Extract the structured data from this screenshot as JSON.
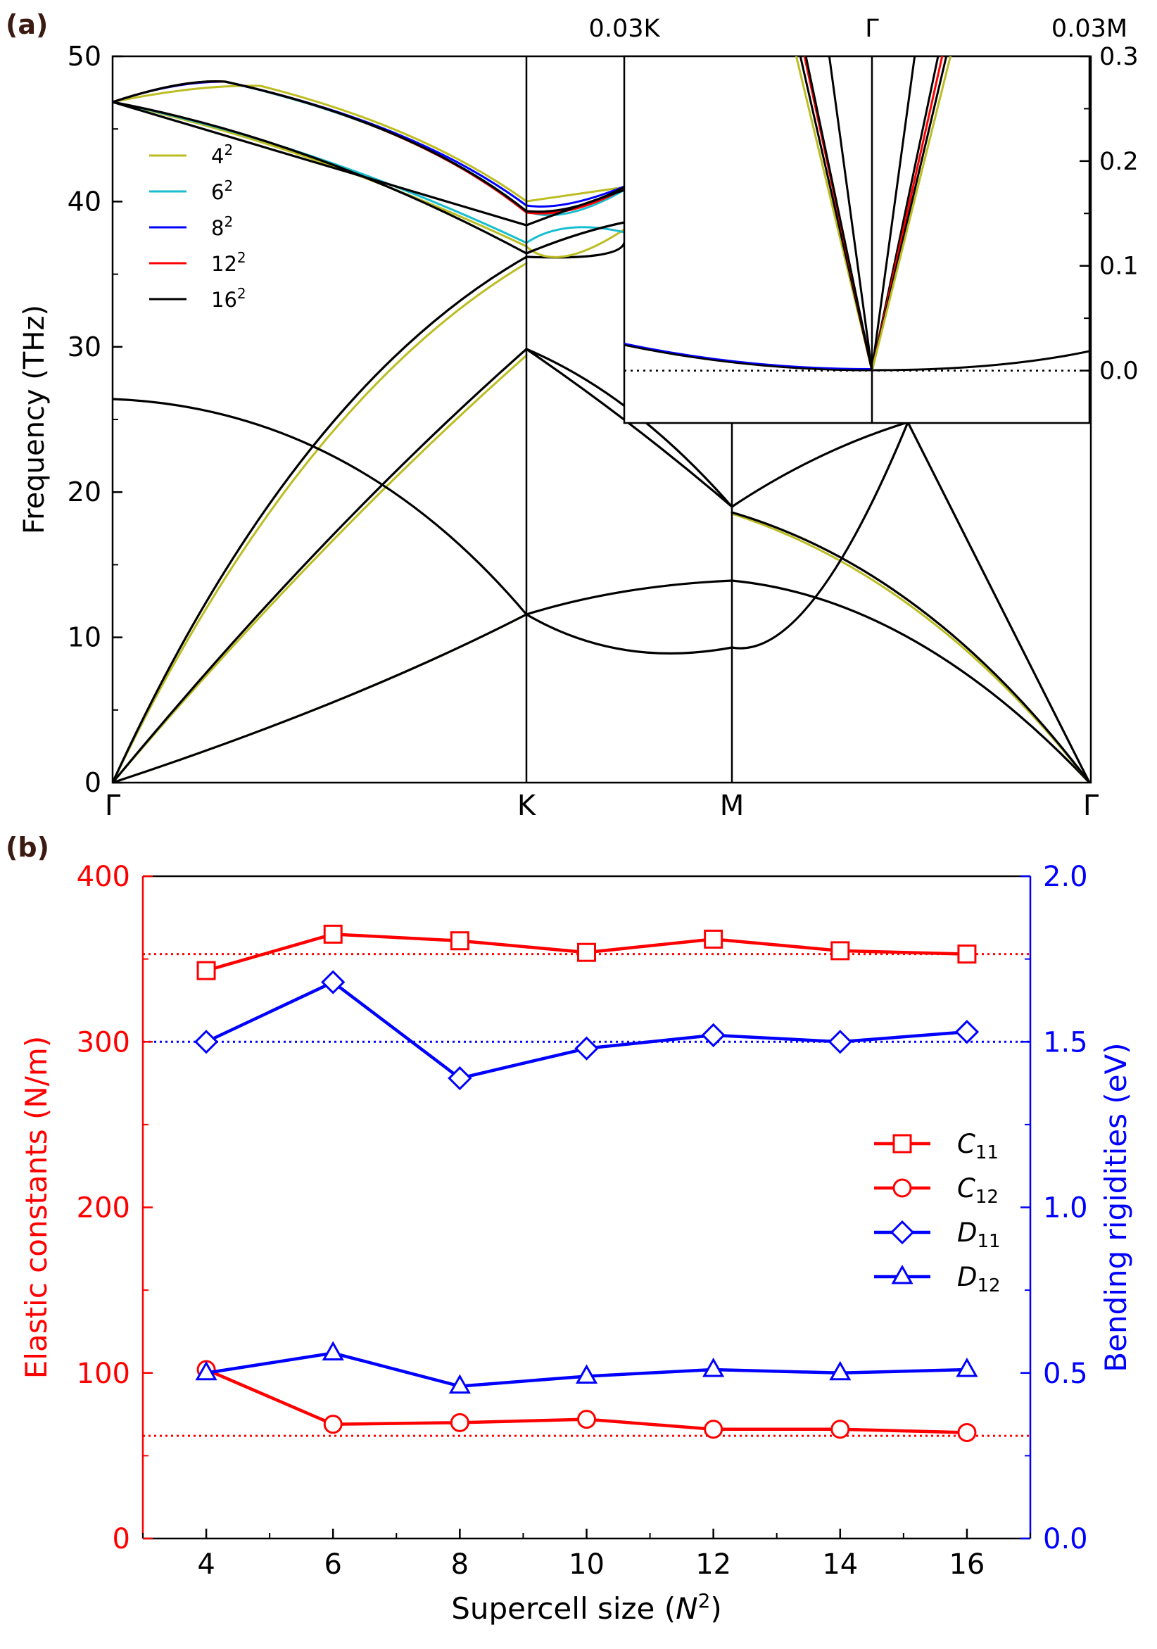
{
  "chart_data": [
    {
      "type": "line",
      "panel_label": "(a)",
      "ylabel": "Frequency (THz)",
      "ylim": [
        0,
        50
      ],
      "y_ticks": [
        "0",
        "10",
        "20",
        "30",
        "40",
        "50"
      ],
      "x_points": [
        "Γ",
        "K",
        "M",
        "Γ"
      ],
      "legend_placement": "upper-left",
      "legend": [
        {
          "base": "4",
          "sup": "2",
          "color": "#bcbd22"
        },
        {
          "base": "6",
          "sup": "2",
          "color": "#17becf"
        },
        {
          "base": "8",
          "sup": "2",
          "color": "#0000ff"
        },
        {
          "base": "12",
          "sup": "2",
          "color": "#ff0000"
        },
        {
          "base": "16",
          "sup": "2",
          "color": "#000000"
        }
      ],
      "bands_note_values": {
        "gamma_optical_THz": 46.7,
        "gamma_flat_optical_THz": 26.3,
        "K_THz": [
          16.0,
          29.8,
          36.3,
          38.4
        ],
        "M_THz": [
          14.1,
          18.9,
          24.6
        ],
        "M_label_region": "M"
      },
      "inset": {
        "top_labels": [
          "0.03K",
          "Γ",
          "0.03M"
        ],
        "y_ticks": [
          "0.0",
          "0.1",
          "0.2",
          "0.3"
        ],
        "ylim": [
          -0.05,
          0.3
        ]
      }
    },
    {
      "type": "line",
      "panel_label": "(b)",
      "xlabel": "Supercell size (N²)",
      "xlabel_parts": {
        "pre": "Supercell size (",
        "var": "N",
        "sup": "2",
        "post": ")"
      },
      "ylabel_left": "Elastic constants (N/m)",
      "ylabel_right": "Bending rigidities (eV)",
      "x": [
        4,
        6,
        8,
        10,
        12,
        14,
        16
      ],
      "x_ticks": [
        "4",
        "6",
        "8",
        "10",
        "12",
        "14",
        "16"
      ],
      "xlim": [
        3,
        17
      ],
      "ylim_left": [
        0,
        400
      ],
      "y_ticks_left": [
        "0",
        "100",
        "200",
        "300",
        "400"
      ],
      "ylim_right": [
        0.0,
        2.0
      ],
      "y_ticks_right": [
        "0.0",
        "0.5",
        "1.0",
        "1.5",
        "2.0"
      ],
      "reference_lines": [
        {
          "axis": "left",
          "value": 353,
          "color": "#ff0000"
        },
        {
          "axis": "left",
          "value": 62,
          "color": "#ff0000"
        },
        {
          "axis": "right",
          "value": 1.5,
          "color": "#0000ff"
        }
      ],
      "legend_placement": "center-right",
      "series": [
        {
          "name": "C11",
          "sym": "C",
          "sub": "11",
          "axis": "left",
          "marker": "square",
          "color": "#ff0000",
          "values": [
            343,
            365,
            361,
            354,
            362,
            355,
            353
          ]
        },
        {
          "name": "C12",
          "sym": "C",
          "sub": "12",
          "axis": "left",
          "marker": "circle",
          "color": "#ff0000",
          "values": [
            102,
            69,
            70,
            72,
            66,
            66,
            64
          ]
        },
        {
          "name": "D11",
          "sym": "D",
          "sub": "11",
          "axis": "right",
          "marker": "diamond",
          "color": "#0000ff",
          "values": [
            1.5,
            1.68,
            1.39,
            1.48,
            1.52,
            1.5,
            1.53
          ]
        },
        {
          "name": "D12",
          "sym": "D",
          "sub": "12",
          "axis": "right",
          "marker": "triangle",
          "color": "#0000ff",
          "values": [
            0.5,
            0.56,
            0.46,
            0.49,
            0.51,
            0.5,
            0.51
          ]
        }
      ]
    }
  ]
}
